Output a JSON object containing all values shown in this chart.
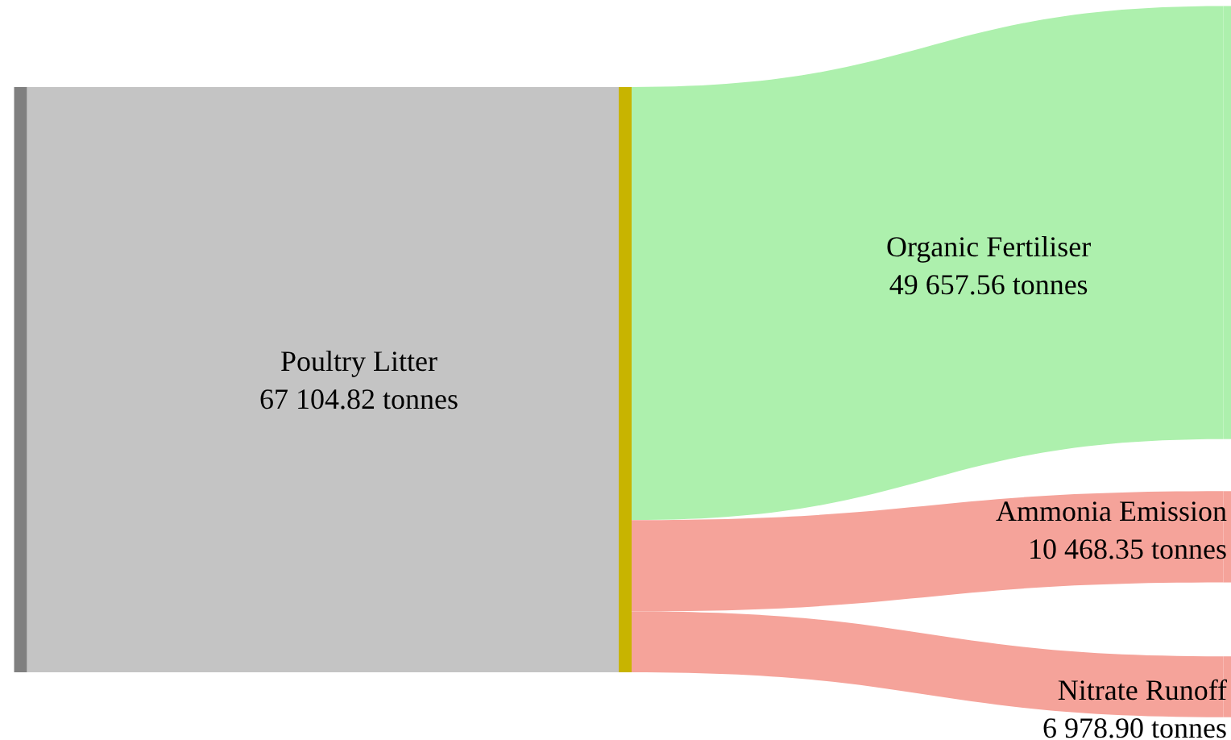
{
  "chart_data": {
    "type": "other",
    "categories": [
      "Poultry Litter",
      null,
      "Organic Fertiliser",
      "Ammonia Emission",
      "Nitrate Runoff"
    ],
    "values": [
      67104.82,
      null,
      49657.56,
      10468.35,
      6978.9
    ],
    "value_labels": [
      "67 104.82 tonnes",
      null,
      "49 657.56 tonnes",
      "10 468.35 tonnes",
      "6 978.90 tonnes"
    ],
    "colors": [
      "#c4c4c4",
      "#c8b400",
      "#adf0ad",
      "#f5a39a",
      "#f5a39a"
    ]
  }
}
